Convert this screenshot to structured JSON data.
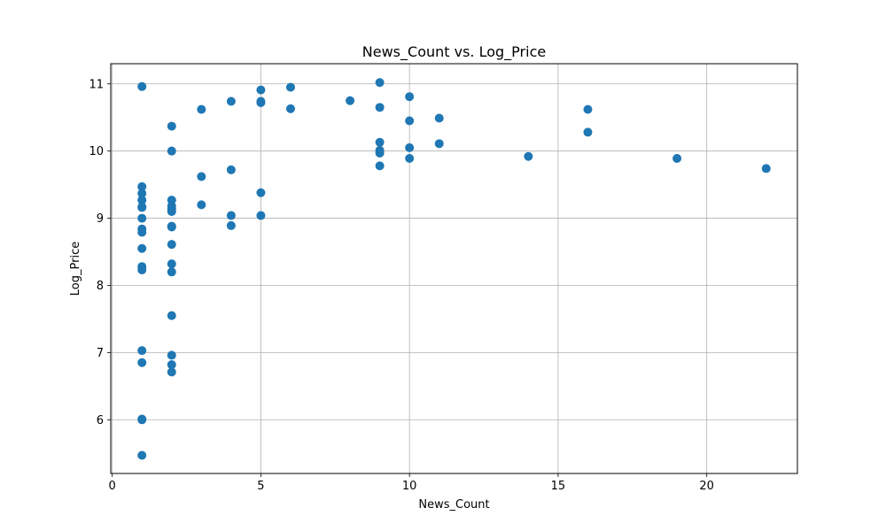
{
  "chart_data": {
    "type": "scatter",
    "title": "News_Count vs. Log_Price",
    "xlabel": "News_Count",
    "ylabel": "Log_Price",
    "xlim": [
      -0.05,
      23.05
    ],
    "ylim": [
      5.2,
      11.3
    ],
    "xticks": [
      0,
      5,
      10,
      15,
      20
    ],
    "yticks": [
      6,
      7,
      8,
      9,
      10,
      11
    ],
    "grid": true,
    "marker_color": "#1f77b4",
    "points": [
      [
        1,
        10.96
      ],
      [
        1,
        9.47
      ],
      [
        1,
        9.37
      ],
      [
        1,
        9.27
      ],
      [
        1,
        9.17
      ],
      [
        1,
        9.16
      ],
      [
        1,
        9.0
      ],
      [
        1,
        8.84
      ],
      [
        1,
        8.79
      ],
      [
        1,
        8.55
      ],
      [
        1,
        8.28
      ],
      [
        1,
        8.23
      ],
      [
        1,
        7.03
      ],
      [
        1,
        6.85
      ],
      [
        1,
        6.01
      ],
      [
        1,
        6.0
      ],
      [
        1,
        5.47
      ],
      [
        2,
        10.37
      ],
      [
        2,
        10.0
      ],
      [
        2,
        9.27
      ],
      [
        2,
        9.18
      ],
      [
        2,
        9.14
      ],
      [
        2,
        9.1
      ],
      [
        2,
        8.88
      ],
      [
        2,
        8.87
      ],
      [
        2,
        8.61
      ],
      [
        2,
        8.32
      ],
      [
        2,
        8.2
      ],
      [
        2,
        7.55
      ],
      [
        2,
        6.96
      ],
      [
        2,
        6.82
      ],
      [
        2,
        6.71
      ],
      [
        3,
        10.62
      ],
      [
        3,
        9.62
      ],
      [
        3,
        9.2
      ],
      [
        4,
        10.74
      ],
      [
        4,
        9.72
      ],
      [
        4,
        9.04
      ],
      [
        4,
        8.89
      ],
      [
        5,
        10.91
      ],
      [
        5,
        10.74
      ],
      [
        5,
        10.72
      ],
      [
        5,
        9.38
      ],
      [
        5,
        9.04
      ],
      [
        6,
        10.95
      ],
      [
        6,
        10.63
      ],
      [
        8,
        10.75
      ],
      [
        9,
        11.02
      ],
      [
        9,
        10.65
      ],
      [
        9,
        10.13
      ],
      [
        9,
        10.01
      ],
      [
        9,
        9.97
      ],
      [
        9,
        9.78
      ],
      [
        10,
        10.81
      ],
      [
        10,
        10.45
      ],
      [
        10,
        10.05
      ],
      [
        10,
        9.89
      ],
      [
        11,
        10.49
      ],
      [
        11,
        10.11
      ],
      [
        14,
        9.92
      ],
      [
        16,
        10.62
      ],
      [
        16,
        10.28
      ],
      [
        19,
        9.89
      ],
      [
        22,
        9.74
      ]
    ]
  }
}
